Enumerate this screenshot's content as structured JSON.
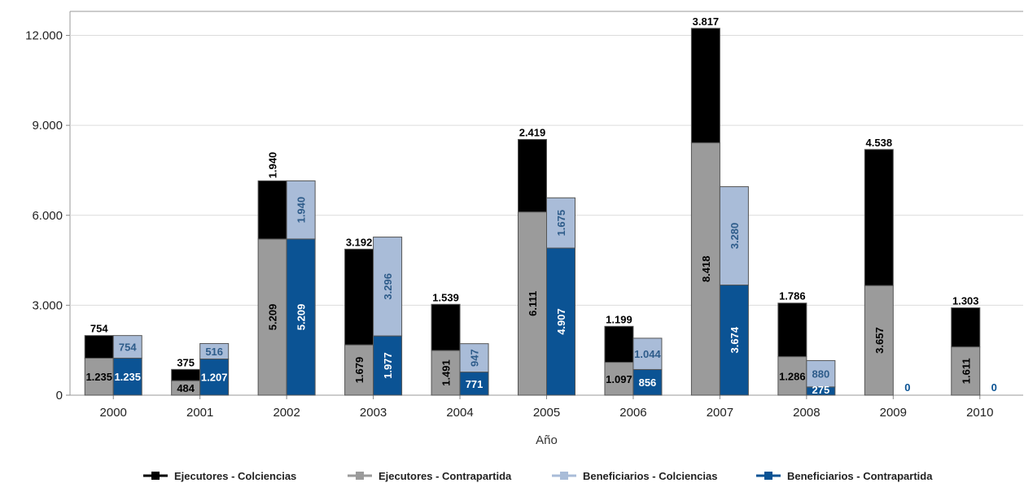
{
  "chart_data": {
    "type": "bar",
    "title": "",
    "xlabel": "Año",
    "ylabel": "",
    "categories": [
      "2000",
      "2001",
      "2002",
      "2003",
      "2004",
      "2005",
      "2006",
      "2007",
      "2008",
      "2009",
      "2010"
    ],
    "ylim": [
      0,
      12800
    ],
    "yticks": [
      0,
      3000,
      6000,
      9000,
      12000
    ],
    "ytick_labels": [
      "0",
      "3.000",
      "6.000",
      "9.000",
      "12.000"
    ],
    "grid": true,
    "legend_position": "bottom",
    "stacks": [
      {
        "name": "Ejecutores",
        "series": [
          {
            "name": "Ejecutores - Contrapartida",
            "color": "#9b9b9b",
            "label_color": "#000000",
            "values": [
              1235,
              484,
              5209,
              1679,
              1491,
              6111,
              1097,
              8418,
              1286,
              3657,
              1611
            ],
            "labels": [
              "1.235",
              "484",
              "5.209",
              "1.679",
              "1.491",
              "6.111",
              "1.097",
              "8.418",
              "1.286",
              "3.657",
              "1.611"
            ]
          },
          {
            "name": "Ejecutores - Colciencias",
            "color": "#000000",
            "label_color": "#000000",
            "values": [
              754,
              375,
              1940,
              3192,
              1539,
              2419,
              1199,
              3817,
              1786,
              4538,
              1303
            ],
            "labels": [
              "754",
              "375",
              "1.940",
              "3.192",
              "1.539",
              "2.419",
              "1.199",
              "3.817",
              "1.786",
              "4.538",
              "1.303"
            ]
          }
        ]
      },
      {
        "name": "Beneficiarios",
        "series": [
          {
            "name": "Beneficiarios - Contrapartida",
            "color": "#0b5394",
            "label_color": "#ffffff",
            "values": [
              1235,
              1207,
              5209,
              1977,
              771,
              4907,
              856,
              3674,
              275,
              0,
              0
            ],
            "labels": [
              "1.235",
              "1.207",
              "5.209",
              "1.977",
              "771",
              "4.907",
              "856",
              "3.674",
              "275",
              "0",
              "0"
            ]
          },
          {
            "name": "Beneficiarios - Colciencias",
            "color": "#a9bcd8",
            "label_color": "#2e5c8a",
            "values": [
              754,
              516,
              1940,
              3296,
              947,
              1675,
              1044,
              3280,
              880,
              0,
              0
            ],
            "labels": [
              "754",
              "516",
              "1.940",
              "3.296",
              "947",
              "1.675",
              "1.044",
              "3.280",
              "880",
              "",
              ""
            ]
          }
        ]
      }
    ],
    "legend": [
      {
        "label": "Ejecutores - Colciencias",
        "color": "#000000"
      },
      {
        "label": "Ejecutores - Contrapartida",
        "color": "#9b9b9b"
      },
      {
        "label": "Beneficiarios - Colciencias",
        "color": "#a9bcd8"
      },
      {
        "label": "Beneficiarios - Contrapartida",
        "color": "#0b5394"
      }
    ]
  }
}
